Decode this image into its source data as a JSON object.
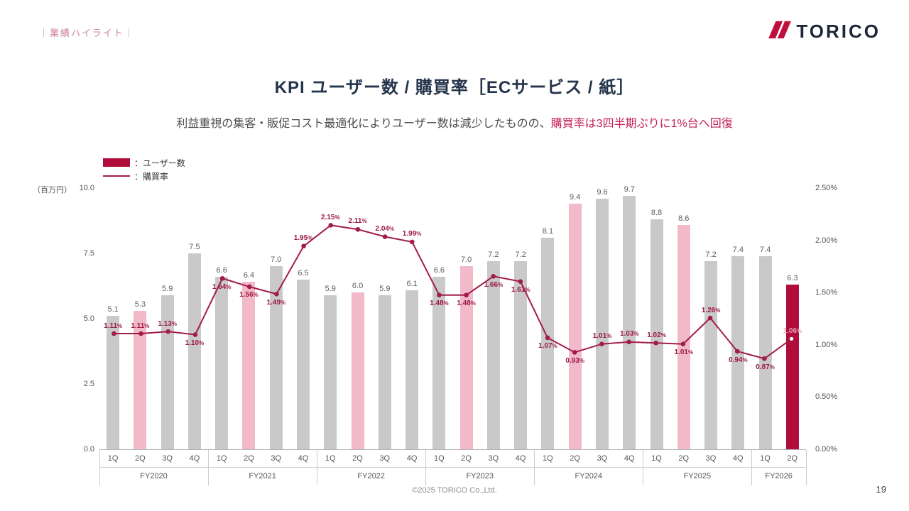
{
  "header": {
    "tag": "｜業績ハイライト｜",
    "logo_text": "TORICO"
  },
  "title": "KPI ユーザー数 / 購買率［ECサービス / 紙］",
  "subtitle": {
    "normal": "利益重視の集客・販促コスト最適化によりユーザー数は減少したものの、",
    "highlight": "購買率は3四半期ぶりに1%台へ回復"
  },
  "legend": {
    "bar_label": "：ユーザー数",
    "line_label": "：購買率"
  },
  "footer": {
    "copyright": "©2025 TORICO Co.,Ltd.",
    "page": "19"
  },
  "chart_data": {
    "type": "bar+line",
    "title": "KPI ユーザー数 / 購買率［ECサービス / 紙］",
    "unit_label": "（百万円）",
    "left_axis": {
      "min": 0,
      "max": 10,
      "ticks": [
        "10.0",
        "7.5",
        "5.0",
        "2.5",
        "0.0"
      ]
    },
    "right_axis": {
      "min": 0,
      "max": 2.5,
      "ticks": [
        "2.50%",
        "2.00%",
        "1.50%",
        "1.00%",
        "0.50%",
        "0.00%"
      ]
    },
    "groups": [
      {
        "year": "FY2020",
        "quarters": [
          "1Q",
          "2Q",
          "3Q",
          "4Q"
        ]
      },
      {
        "year": "FY2021",
        "quarters": [
          "1Q",
          "2Q",
          "3Q",
          "4Q"
        ]
      },
      {
        "year": "FY2022",
        "quarters": [
          "1Q",
          "2Q",
          "3Q",
          "4Q"
        ]
      },
      {
        "year": "FY2023",
        "quarters": [
          "1Q",
          "2Q",
          "3Q",
          "4Q"
        ]
      },
      {
        "year": "FY2024",
        "quarters": [
          "1Q",
          "2Q",
          "3Q",
          "4Q"
        ]
      },
      {
        "year": "FY2025",
        "quarters": [
          "1Q",
          "2Q",
          "3Q",
          "4Q"
        ]
      },
      {
        "year": "FY2026",
        "quarters": [
          "1Q",
          "2Q"
        ]
      }
    ],
    "bars": {
      "name": "ユーザー数",
      "values": [
        5.1,
        5.3,
        5.9,
        7.5,
        6.6,
        6.4,
        7.0,
        6.5,
        5.9,
        6.0,
        5.9,
        6.1,
        6.6,
        7.0,
        7.2,
        7.2,
        8.1,
        9.4,
        9.6,
        9.7,
        8.8,
        8.6,
        7.2,
        7.4,
        7.4,
        6.3
      ],
      "styles": [
        "gray",
        "pink",
        "gray",
        "gray",
        "gray",
        "pink",
        "gray",
        "gray",
        "gray",
        "pink",
        "gray",
        "gray",
        "gray",
        "pink",
        "gray",
        "gray",
        "gray",
        "pink",
        "gray",
        "gray",
        "gray",
        "pink",
        "gray",
        "gray",
        "gray",
        "crimson"
      ]
    },
    "line": {
      "name": "購買率",
      "values": [
        1.11,
        1.11,
        1.13,
        1.1,
        1.64,
        1.56,
        1.49,
        1.95,
        2.15,
        2.11,
        2.04,
        1.99,
        1.48,
        1.48,
        1.66,
        1.61,
        1.07,
        0.93,
        1.01,
        1.03,
        1.02,
        1.01,
        1.26,
        0.94,
        0.87,
        1.06
      ],
      "labels": [
        "1.11%",
        "1.11%",
        "1.13%",
        "1.10%",
        "1.64%",
        "1.56%",
        "1.49%",
        "1.95%",
        "2.15%",
        "2.11%",
        "2.04%",
        "1.99%",
        "1.48%",
        "1.48%",
        "1.66%",
        "1.61%",
        "1.07%",
        "0.93%",
        "1.01%",
        "1.03%",
        "1.02%",
        "1.01%",
        "1.26%",
        "0.94%",
        "0.87%",
        "1.06%"
      ],
      "label_pos": [
        "above",
        "above",
        "above",
        "below",
        "below",
        "below",
        "below",
        "above",
        "above",
        "above",
        "above",
        "above",
        "below",
        "below",
        "below",
        "below",
        "below",
        "below",
        "above",
        "above",
        "above",
        "below",
        "above",
        "below",
        "below",
        "above"
      ],
      "light_label_indices": [
        25
      ],
      "hollow_point_indices": [
        25
      ]
    },
    "colors": {
      "bar_gray": "#c9c9c9",
      "bar_pink": "#f2b9c8",
      "bar_crimson": "#b00d3a",
      "line": "#a21c4a",
      "label": "#9c1744",
      "label_light": "#e2a0b6"
    }
  }
}
